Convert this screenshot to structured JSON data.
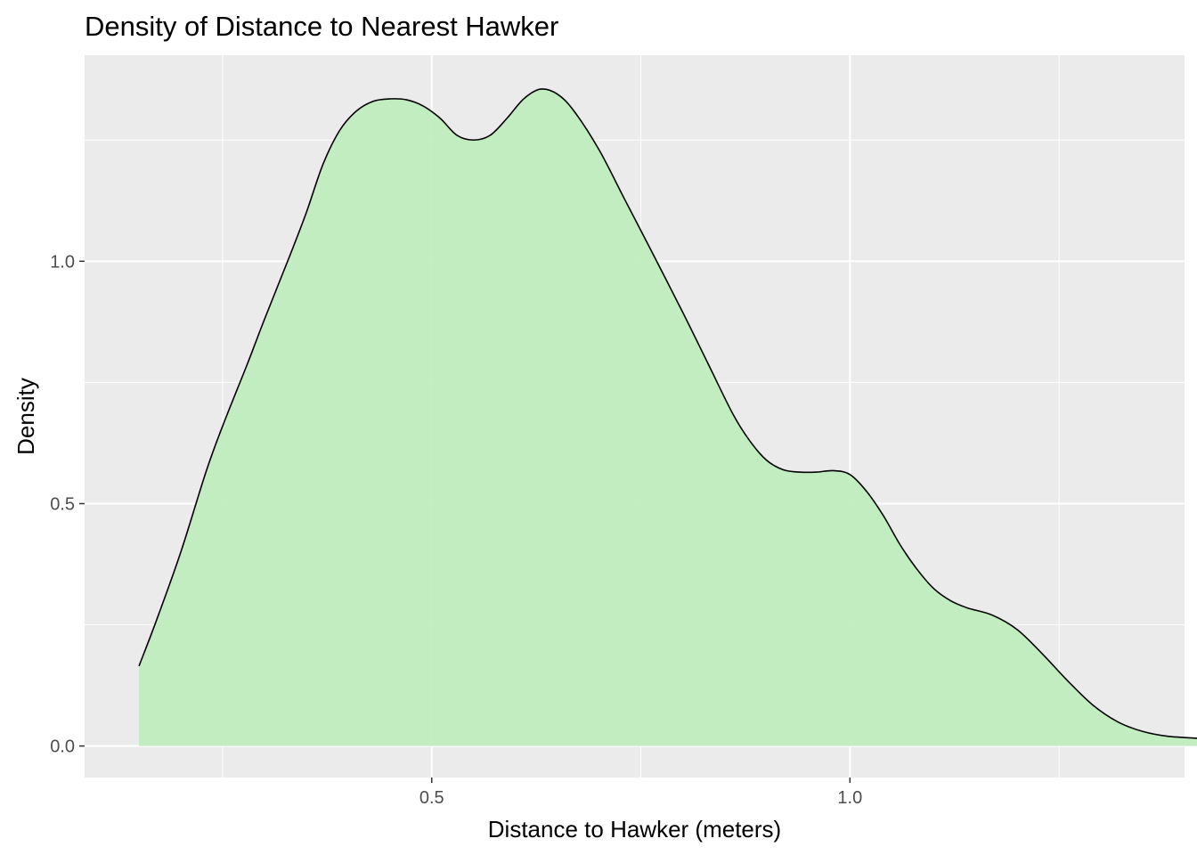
{
  "chart_data": {
    "type": "area",
    "title": "Density of Distance to Nearest Hawker",
    "xlabel": "Distance to Hawker (meters)",
    "ylabel": "Density",
    "xlim": [
      0.085,
      1.4
    ],
    "ylim": [
      -0.065,
      1.425
    ],
    "x_ticks": [
      0.5,
      1.0
    ],
    "x_tick_labels": [
      "0.5",
      "1.0"
    ],
    "x_minor_ticks": [
      0.25,
      0.75,
      1.25
    ],
    "y_ticks": [
      0.0,
      0.5,
      1.0
    ],
    "y_tick_labels": [
      "0.0",
      "0.5",
      "1.0"
    ],
    "y_minor_ticks": [
      0.25,
      0.75,
      1.25
    ],
    "grid": true,
    "legend": "none",
    "fill_color": "#bdedbd",
    "line_color": "#000000",
    "panel_color": "#ebebeb",
    "grid_color": "#ffffff",
    "series": [
      {
        "x": [
          0.15,
          0.17,
          0.2,
          0.23,
          0.25,
          0.28,
          0.3,
          0.33,
          0.35,
          0.37,
          0.39,
          0.41,
          0.43,
          0.45,
          0.47,
          0.49,
          0.51,
          0.53,
          0.55,
          0.57,
          0.59,
          0.61,
          0.63,
          0.65,
          0.67,
          0.7,
          0.73,
          0.76,
          0.8,
          0.83,
          0.86,
          0.88,
          0.9,
          0.92,
          0.94,
          0.96,
          0.98,
          1.0,
          1.02,
          1.04,
          1.06,
          1.08,
          1.1,
          1.12,
          1.14,
          1.17,
          1.2,
          1.23,
          1.26,
          1.29,
          1.32,
          1.35,
          1.38,
          1.415
        ],
        "y": [
          0.165,
          0.255,
          0.4,
          0.565,
          0.66,
          0.79,
          0.88,
          1.01,
          1.1,
          1.2,
          1.27,
          1.31,
          1.33,
          1.335,
          1.333,
          1.32,
          1.295,
          1.26,
          1.25,
          1.26,
          1.295,
          1.335,
          1.355,
          1.345,
          1.31,
          1.23,
          1.13,
          1.03,
          0.895,
          0.79,
          0.685,
          0.63,
          0.59,
          0.57,
          0.565,
          0.565,
          0.568,
          0.56,
          0.525,
          0.475,
          0.415,
          0.365,
          0.325,
          0.3,
          0.285,
          0.27,
          0.24,
          0.19,
          0.135,
          0.085,
          0.05,
          0.03,
          0.02,
          0.016
        ]
      }
    ]
  }
}
